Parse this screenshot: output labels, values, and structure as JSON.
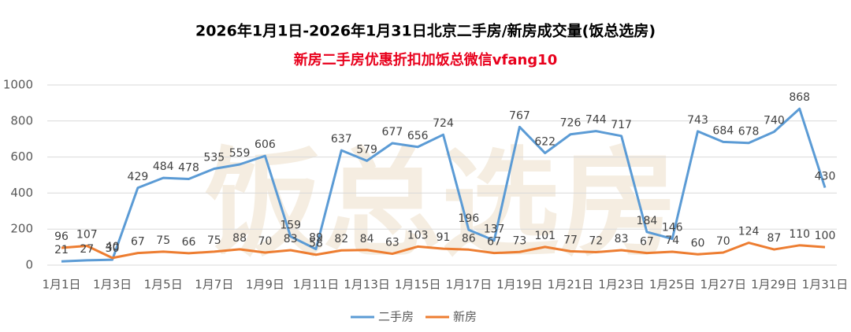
{
  "chart_data": {
    "type": "line",
    "title": "2026年1月1日-2026年1月31日北京二手房/新房成交量(饭总选房)",
    "subtitle": "新房二手房优惠折扣加饭总微信vfang10",
    "watermark": "饭总选房",
    "categories": [
      "1月1日",
      null,
      "1月3日",
      null,
      "1月5日",
      null,
      "1月7日",
      null,
      "1月9日",
      null,
      "1月11日",
      null,
      "1月13日",
      null,
      "1月15日",
      null,
      "1月17日",
      null,
      "1月19日",
      null,
      "1月21日",
      null,
      "1月23日",
      null,
      "1月25日",
      null,
      "1月27日",
      null,
      "1月29日",
      null,
      "1月31日"
    ],
    "series": [
      {
        "name": "二手房",
        "color": "#5b9bd5",
        "values": [
          21,
          27,
          30,
          429,
          484,
          478,
          535,
          559,
          606,
          159,
          89,
          637,
          579,
          677,
          656,
          724,
          196,
          137,
          767,
          622,
          726,
          744,
          717,
          184,
          146,
          743,
          684,
          678,
          740,
          868,
          430
        ]
      },
      {
        "name": "新房",
        "color": "#ed7d31",
        "values": [
          96,
          107,
          40,
          67,
          75,
          66,
          75,
          88,
          70,
          83,
          58,
          82,
          84,
          63,
          103,
          91,
          86,
          67,
          73,
          101,
          77,
          72,
          83,
          67,
          74,
          60,
          70,
          124,
          87,
          110,
          100
        ]
      }
    ],
    "ylim": [
      0,
      1000
    ],
    "yticks": [
      0,
      200,
      400,
      600,
      800,
      1000
    ],
    "grid": true,
    "legend": "bottom"
  }
}
